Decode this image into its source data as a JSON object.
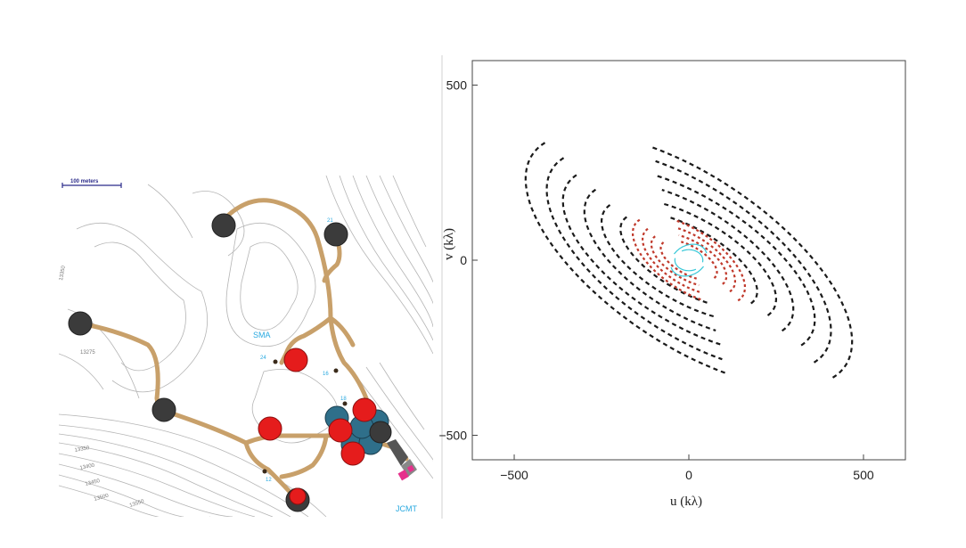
{
  "map": {
    "scale_label": "100 meters",
    "contour_labels": [
      "13350",
      "13275",
      "13350",
      "13400",
      "13450",
      "13500",
      "13550"
    ],
    "facility_labels": {
      "sma": "SMA",
      "jcmt": "JCMT"
    },
    "pad_numbers": [
      "21",
      "24",
      "16",
      "18",
      "12"
    ],
    "colors": {
      "road": "#c8a06a",
      "contour": "#b0b0b0",
      "label": "#29a9e0",
      "dark_pad": "#3b3b3b",
      "red_pad": "#e51c1c",
      "teal_pad": "#2f6f8a"
    }
  },
  "chart_data": {
    "type": "scatter",
    "title": "",
    "xlabel": "u (kλ)",
    "ylabel": "v (kλ)",
    "xlim": [
      -620,
      620
    ],
    "ylim": [
      -570,
      570
    ],
    "xticks": [
      -500,
      0,
      500
    ],
    "yticks": [
      -500,
      0,
      500
    ],
    "tick_labels_x": [
      "−500",
      "0",
      "500"
    ],
    "tick_labels_y": [
      "500",
      "0",
      "−500"
    ],
    "grid": false,
    "series": [
      {
        "color": "#1a1a1a",
        "tracks": [
          {
            "a": 220,
            "b": 90,
            "rot": -30
          },
          {
            "a": 280,
            "b": 120,
            "rot": -30
          },
          {
            "a": 340,
            "b": 150,
            "rot": -32
          },
          {
            "a": 410,
            "b": 180,
            "rot": -32
          },
          {
            "a": 470,
            "b": 210,
            "rot": -34
          },
          {
            "a": 540,
            "b": 240,
            "rot": -34
          }
        ]
      },
      {
        "color": "#c0392b",
        "tracks": [
          {
            "a": 90,
            "b": 40,
            "rot": -30
          },
          {
            "a": 120,
            "b": 55,
            "rot": -30
          },
          {
            "a": 150,
            "b": 70,
            "rot": -32
          },
          {
            "a": 185,
            "b": 85,
            "rot": -34
          }
        ]
      },
      {
        "color": "#38c8d8",
        "tracks": [
          {
            "a": 40,
            "b": 30,
            "rot": 0
          },
          {
            "a": 55,
            "b": 42,
            "rot": 30
          }
        ]
      }
    ]
  }
}
